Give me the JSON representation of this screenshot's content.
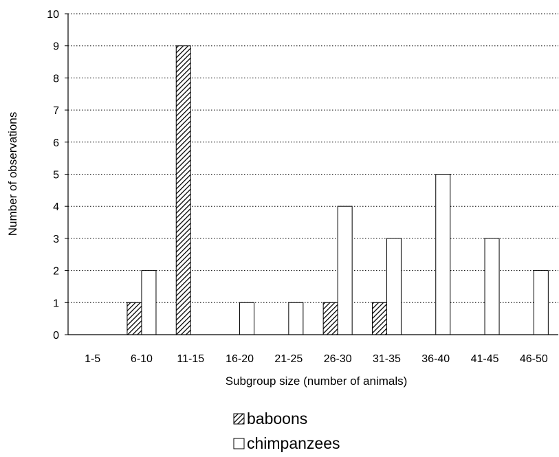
{
  "chart_data": {
    "type": "bar",
    "title": "",
    "xlabel": "Subgroup size (number of animals)",
    "ylabel": "Number of observations",
    "categories": [
      "1-5",
      "6-10",
      "11-15",
      "16-20",
      "21-25",
      "26-30",
      "31-35",
      "36-40",
      "41-45",
      "46-50"
    ],
    "ylim": [
      0,
      10
    ],
    "yticks": [
      "0",
      "1",
      "2",
      "3",
      "4",
      "5",
      "6",
      "7",
      "8",
      "9",
      "10"
    ],
    "grid": "horizontal dotted",
    "legend_position": "bottom-center",
    "series": [
      {
        "name": "baboons",
        "pattern": "diagonal-hatch",
        "color": "#000000",
        "values": [
          0,
          1,
          9,
          0,
          0,
          1,
          1,
          0,
          0,
          0
        ]
      },
      {
        "name": "chimpanzees",
        "pattern": "none",
        "color": "#ffffff",
        "values": [
          0,
          2,
          0,
          1,
          1,
          4,
          3,
          5,
          3,
          2
        ]
      }
    ]
  }
}
